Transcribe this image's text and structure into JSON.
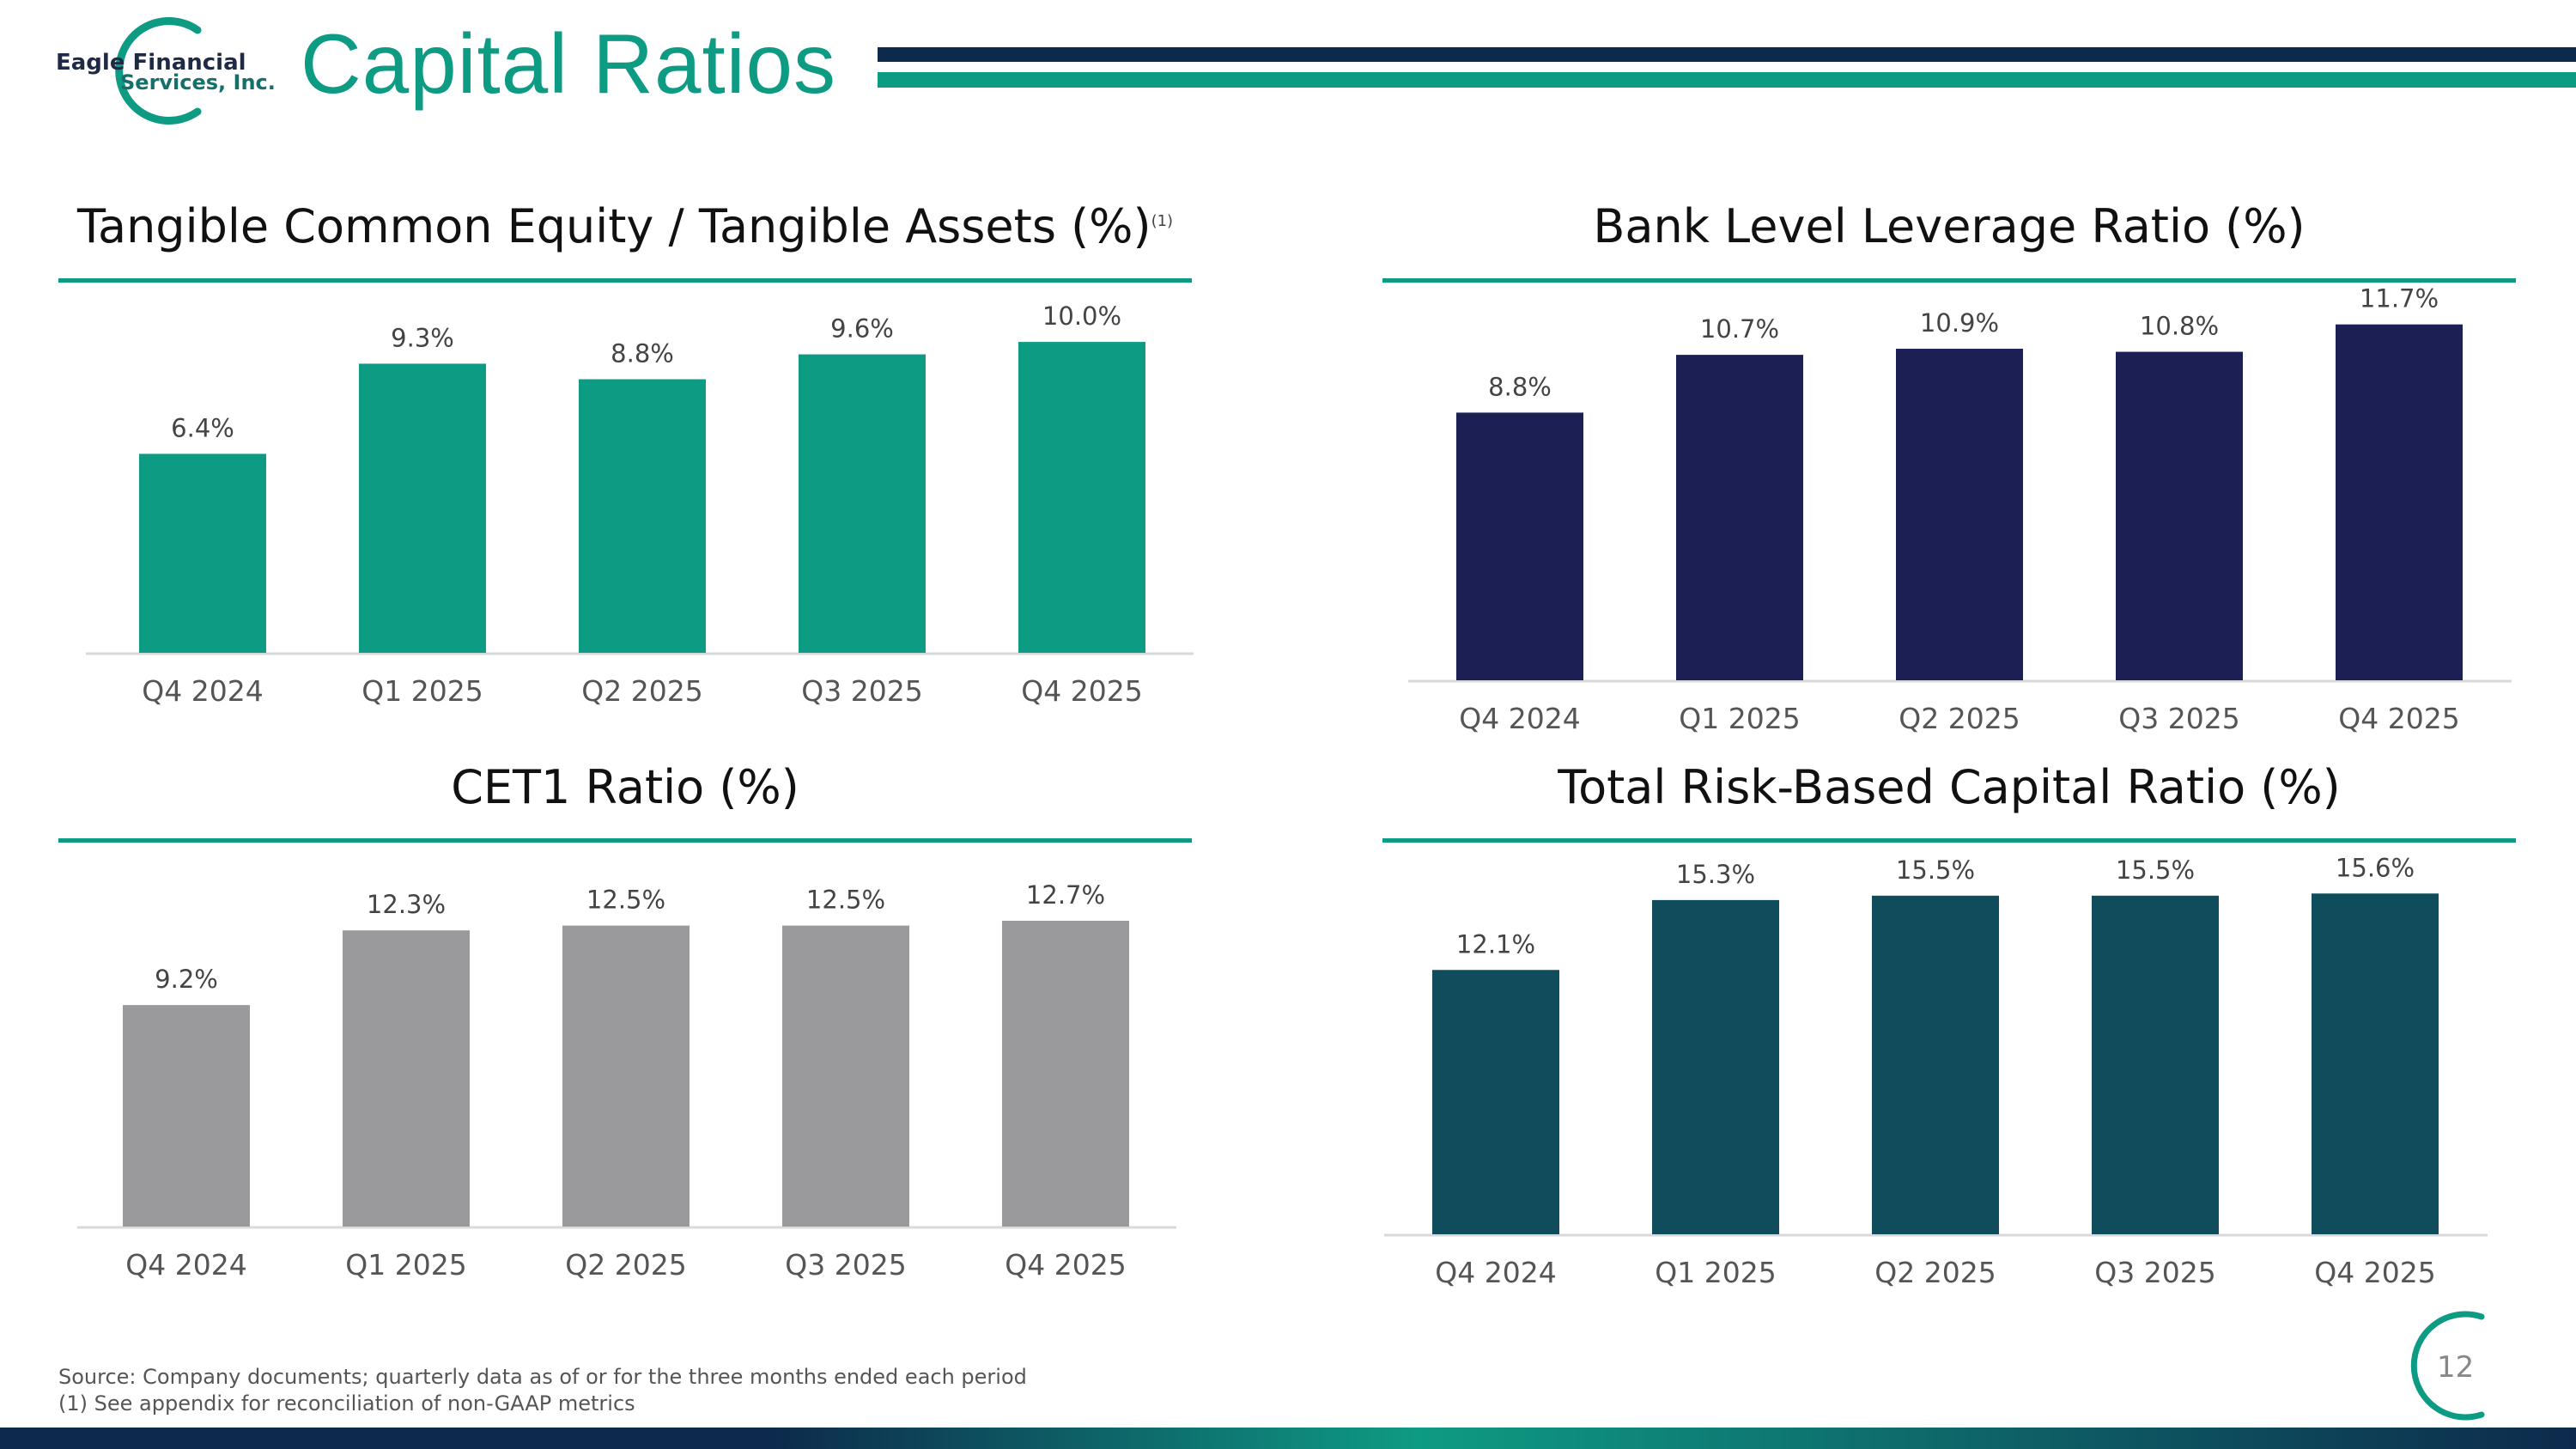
{
  "header": {
    "logo_line1": "Eagle Financial",
    "logo_line2": "Services, Inc.",
    "title": "Capital Ratios"
  },
  "colors": {
    "teal": "#0e9b83",
    "navy": "#1c1f54",
    "gray": "#9a9a9c",
    "dark_teal": "#0f4d5c"
  },
  "chart_data": [
    {
      "type": "bar",
      "title": "Tangible Common Equity / Tangible Assets (%)",
      "footnote_marker": "(1)",
      "categories": [
        "Q4 2024",
        "Q1 2025",
        "Q2 2025",
        "Q3 2025",
        "Q4 2025"
      ],
      "values": [
        6.4,
        9.3,
        8.8,
        9.6,
        10.0
      ],
      "labels": [
        "6.4%",
        "9.3%",
        "8.8%",
        "9.6%",
        "10.0%"
      ],
      "color": "#0e9b83",
      "ylim": [
        0,
        10.5
      ]
    },
    {
      "type": "bar",
      "title": "Bank Level Leverage Ratio (%)",
      "categories": [
        "Q4 2024",
        "Q1 2025",
        "Q2 2025",
        "Q3 2025",
        "Q4 2025"
      ],
      "values": [
        8.8,
        10.7,
        10.9,
        10.8,
        11.7
      ],
      "labels": [
        "8.8%",
        "10.7%",
        "10.9%",
        "10.8%",
        "11.7%"
      ],
      "color": "#1c1f54",
      "ylim": [
        0,
        12.2
      ]
    },
    {
      "type": "bar",
      "title": "CET1 Ratio (%)",
      "categories": [
        "Q4 2024",
        "Q1 2025",
        "Q2 2025",
        "Q3 2025",
        "Q4 2025"
      ],
      "values": [
        9.2,
        12.3,
        12.5,
        12.5,
        12.7
      ],
      "labels": [
        "9.2%",
        "12.3%",
        "12.5%",
        "12.5%",
        "12.7%"
      ],
      "color": "#9a9a9c",
      "ylim": [
        0,
        13.2
      ]
    },
    {
      "type": "bar",
      "title": "Total Risk-Based Capital Ratio (%)",
      "categories": [
        "Q4 2024",
        "Q1 2025",
        "Q2 2025",
        "Q3 2025",
        "Q4 2025"
      ],
      "values": [
        12.1,
        15.3,
        15.5,
        15.5,
        15.6
      ],
      "labels": [
        "12.1%",
        "15.3%",
        "15.5%",
        "15.5%",
        "15.6%"
      ],
      "color": "#0f4d5c",
      "ylim": [
        0,
        16.2
      ]
    }
  ],
  "footer": {
    "source": "Source: Company documents; quarterly data as of or for the three months ended each period",
    "note": "(1)   See appendix for reconciliation of non-GAAP metrics",
    "page_number": "12"
  }
}
